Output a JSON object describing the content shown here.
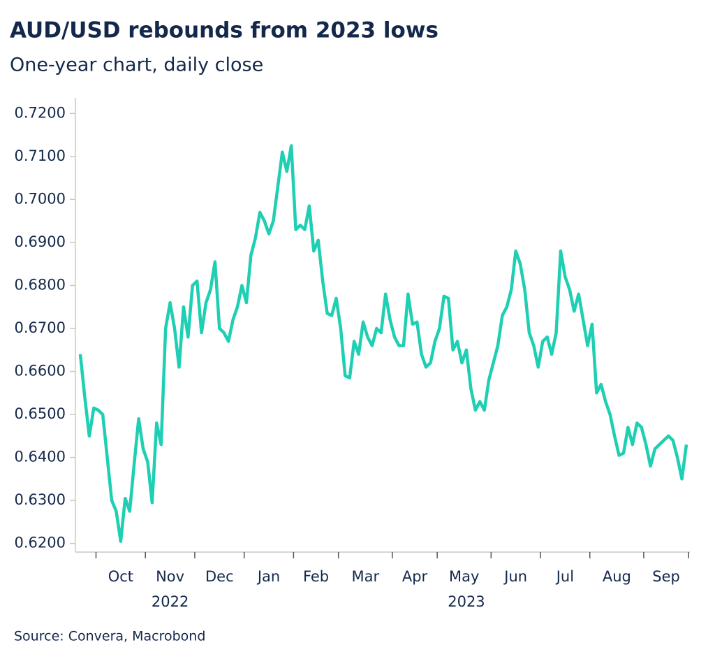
{
  "chart_data": {
    "type": "line",
    "title": "AUD/USD rebounds from 2023 lows",
    "subtitle": "One-year chart, daily close",
    "source": "Source: Convera, Macrobond",
    "x": [
      "2022-09",
      "2022-09",
      "2022-09",
      "2022-09",
      "2022-10",
      "2022-10",
      "2022-10",
      "2022-10",
      "2022-10",
      "2022-10",
      "2022-10",
      "2022-10",
      "2022-10",
      "2022-10",
      "2022-10",
      "2022-11",
      "2022-11",
      "2022-11",
      "2022-11",
      "2022-11",
      "2022-11",
      "2022-11",
      "2022-11",
      "2022-11",
      "2022-11",
      "2022-11",
      "2022-12",
      "2022-12",
      "2022-12",
      "2022-12",
      "2022-12",
      "2022-12",
      "2022-12",
      "2022-12",
      "2022-12",
      "2022-12",
      "2022-12",
      "2023-01",
      "2023-01",
      "2023-01",
      "2023-01",
      "2023-01",
      "2023-01",
      "2023-01",
      "2023-01",
      "2023-01",
      "2023-01",
      "2023-01",
      "2023-02",
      "2023-02",
      "2023-02",
      "2023-02",
      "2023-02",
      "2023-02",
      "2023-02",
      "2023-02",
      "2023-02",
      "2023-02",
      "2023-03",
      "2023-03",
      "2023-03",
      "2023-03",
      "2023-03",
      "2023-03",
      "2023-03",
      "2023-03",
      "2023-03",
      "2023-03",
      "2023-03",
      "2023-03",
      "2023-04",
      "2023-04",
      "2023-04",
      "2023-04",
      "2023-04",
      "2023-04",
      "2023-04",
      "2023-04",
      "2023-04",
      "2023-04",
      "2023-05",
      "2023-05",
      "2023-05",
      "2023-05",
      "2023-05",
      "2023-05",
      "2023-05",
      "2023-05",
      "2023-05",
      "2023-05",
      "2023-05",
      "2023-05",
      "2023-06",
      "2023-06",
      "2023-06",
      "2023-06",
      "2023-06",
      "2023-06",
      "2023-06",
      "2023-06",
      "2023-06",
      "2023-06",
      "2023-06",
      "2023-07",
      "2023-07",
      "2023-07",
      "2023-07",
      "2023-07",
      "2023-07",
      "2023-07",
      "2023-07",
      "2023-07",
      "2023-07",
      "2023-07",
      "2023-08",
      "2023-08",
      "2023-08",
      "2023-08",
      "2023-08",
      "2023-08",
      "2023-08",
      "2023-08",
      "2023-08",
      "2023-08",
      "2023-08",
      "2023-08",
      "2023-09",
      "2023-09",
      "2023-09",
      "2023-09",
      "2023-09",
      "2023-09",
      "2023-09",
      "2023-09",
      "2023-09",
      "2023-09"
    ],
    "month_labels": [
      null,
      "Oct",
      "Nov",
      "Dec",
      "Jan",
      "Feb",
      "Mar",
      "Apr",
      "May",
      "Jun",
      "Jul",
      "Aug",
      "Sep"
    ],
    "year_labels": [
      "2022",
      "2023"
    ],
    "series": [
      {
        "name": "AUD/USD",
        "color": "#1fcfb3",
        "values": [
          0.664,
          0.654,
          0.645,
          0.6515,
          0.651,
          0.65,
          0.64,
          0.63,
          0.6275,
          0.6205,
          0.6305,
          0.6275,
          0.6385,
          0.649,
          0.642,
          0.639,
          0.6295,
          0.648,
          0.643,
          0.67,
          0.676,
          0.67,
          0.661,
          0.675,
          0.668,
          0.68,
          0.681,
          0.669,
          0.676,
          0.679,
          0.6855,
          0.67,
          0.669,
          0.667,
          0.672,
          0.675,
          0.68,
          0.676,
          0.687,
          0.691,
          0.697,
          0.695,
          0.692,
          0.695,
          0.703,
          0.711,
          0.7065,
          0.7125,
          0.693,
          0.694,
          0.693,
          0.6985,
          0.688,
          0.6905,
          0.681,
          0.6735,
          0.673,
          0.677,
          0.67,
          0.659,
          0.6585,
          0.667,
          0.664,
          0.6715,
          0.668,
          0.666,
          0.67,
          0.669,
          0.678,
          0.672,
          0.668,
          0.666,
          0.666,
          0.678,
          0.671,
          0.6715,
          0.664,
          0.661,
          0.662,
          0.667,
          0.67,
          0.6775,
          0.677,
          0.665,
          0.667,
          0.662,
          0.665,
          0.656,
          0.651,
          0.653,
          0.651,
          0.658,
          0.662,
          0.666,
          0.673,
          0.675,
          0.679,
          0.688,
          0.685,
          0.679,
          0.669,
          0.666,
          0.661,
          0.667,
          0.668,
          0.664,
          0.669,
          0.688,
          0.682,
          0.679,
          0.674,
          0.678,
          0.672,
          0.666,
          0.671,
          0.655,
          0.657,
          0.653,
          0.65,
          0.645,
          0.6405,
          0.641,
          0.647,
          0.643,
          0.648,
          0.647,
          0.643,
          0.638,
          0.642,
          0.643,
          0.644,
          0.645,
          0.644,
          0.64,
          0.635,
          0.643
        ]
      }
    ],
    "ylim": [
      0.618,
      0.722
    ],
    "yticks": [
      {
        "value": 0.62,
        "label": "0.6200"
      },
      {
        "value": 0.63,
        "label": "0.6300"
      },
      {
        "value": 0.64,
        "label": "0.6400"
      },
      {
        "value": 0.65,
        "label": "0.6500"
      },
      {
        "value": 0.66,
        "label": "0.6600"
      },
      {
        "value": 0.67,
        "label": "0.6700"
      },
      {
        "value": 0.68,
        "label": "0.6800"
      },
      {
        "value": 0.69,
        "label": "0.6900"
      },
      {
        "value": 0.7,
        "label": "0.7000"
      },
      {
        "value": 0.71,
        "label": "0.7100"
      },
      {
        "value": 0.72,
        "label": "0.7200"
      }
    ],
    "grid": false
  }
}
